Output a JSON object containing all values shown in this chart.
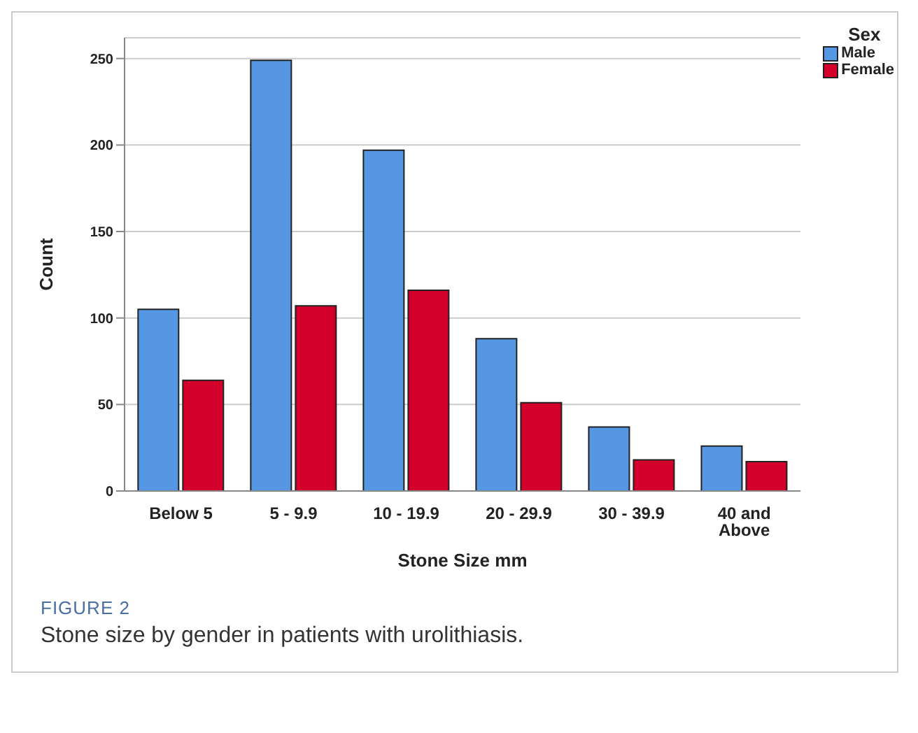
{
  "chart_data": {
    "type": "bar",
    "xlabel": "Stone Size mm",
    "ylabel": "Count",
    "legend_title": "Sex",
    "categories": [
      "Below 5",
      "5 - 9.9",
      "10 - 19.9",
      "20 - 29.9",
      "30 - 39.9",
      "40 and Above"
    ],
    "series": [
      {
        "name": "Male",
        "color": "#5597e2",
        "values": [
          105,
          249,
          197,
          88,
          37,
          26
        ]
      },
      {
        "name": "Female",
        "color": "#d2002a",
        "values": [
          64,
          107,
          116,
          51,
          18,
          17
        ]
      }
    ],
    "ylim": [
      0,
      262
    ],
    "yticks": [
      0,
      50,
      100,
      150,
      200,
      250
    ],
    "grid": "y",
    "legend": "top right",
    "annotations": [
      "FIGURE 2",
      "Stone size by gender in patients with urolithiasis."
    ]
  }
}
